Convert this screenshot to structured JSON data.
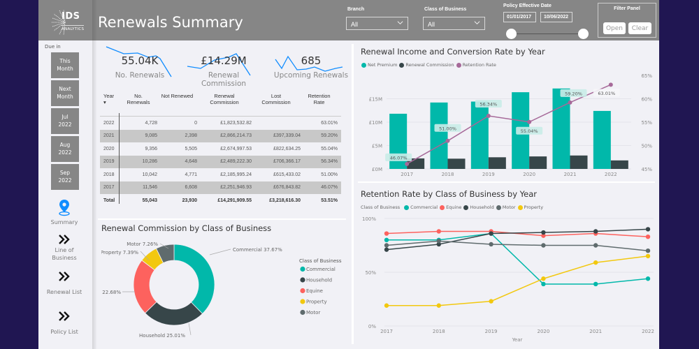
{
  "header": {
    "logo_text": "IDS",
    "logo_subtext": "ANALYTICS",
    "title": "Renewals Summary",
    "branch_label": "Branch",
    "branch_value": "All",
    "class_label": "Class of Business",
    "class_value": "All",
    "date_label": "Policy Effective Date",
    "date_start": "01/01/2017",
    "date_end": "10/06/2022",
    "filter_panel_title": "Filter Panel",
    "open_label": "Open",
    "clear_label": "Clear"
  },
  "sidebar": {
    "due_label": "Due in",
    "due_buttons": [
      {
        "line1": "This",
        "line2": "Month"
      },
      {
        "line1": "Next",
        "line2": "Month"
      },
      {
        "line1": "Jul",
        "line2": "2022"
      },
      {
        "line1": "Aug",
        "line2": "2022"
      },
      {
        "line1": "Sep",
        "line2": "2022"
      }
    ],
    "nav": [
      {
        "label": "Summary",
        "icon": "map-pin-icon",
        "active": true
      },
      {
        "label": "Line of Business",
        "icon": "double-chevron-right-icon"
      },
      {
        "label": "Renewal List",
        "icon": "double-chevron-right-icon"
      },
      {
        "label": "Policy List",
        "icon": "double-chevron-right-icon"
      }
    ],
    "nav_line_of": "Line of",
    "nav_business": "Business"
  },
  "kpis": [
    {
      "value": "55.04K",
      "label": "No. Renewals"
    },
    {
      "value": "£14.29M",
      "label": "Renewal Commission"
    },
    {
      "value": "685",
      "label": "Upcoming Renewals"
    }
  ],
  "table": {
    "headers": [
      {
        "l1": "Year",
        "l2": "▾"
      },
      {
        "l1": "No.",
        "l2": "Renewals"
      },
      {
        "l1": "Not Renewed",
        "l2": ""
      },
      {
        "l1": "Renewal",
        "l2": "Commission"
      },
      {
        "l1": "Lost",
        "l2": "Commission"
      },
      {
        "l1": "Retention",
        "l2": "Rate"
      }
    ],
    "rows": [
      [
        "2022",
        "4,728",
        "0",
        "£1,823,532.82",
        "",
        "63.01%"
      ],
      [
        "2021",
        "9,085",
        "2,398",
        "£2,866,214.73",
        "£397,339.04",
        "59.20%"
      ],
      [
        "2020",
        "9,356",
        "5,505",
        "£2,674,997.53",
        "£822,634.25",
        "55.04%"
      ],
      [
        "2019",
        "10,286",
        "4,648",
        "£2,489,222.30",
        "£706,366.17",
        "56.34%"
      ],
      [
        "2018",
        "10,042",
        "4,771",
        "£2,185,995.24",
        "£615,433.02",
        "51.00%"
      ],
      [
        "2017",
        "11,546",
        "6,608",
        "£2,251,946.93",
        "£676,843.82",
        "46.07%"
      ]
    ],
    "total": [
      "Total",
      "55,043",
      "23,930",
      "£14,291,909.55",
      "£3,218,616.30",
      "53.51%"
    ]
  },
  "chart_data": [
    {
      "type": "bar",
      "title": "Renewal Income and Conversion Rate by Year",
      "categories": [
        "2017",
        "2018",
        "2019",
        "2020",
        "2021",
        "2022"
      ],
      "series": [
        {
          "name": "Net Premium",
          "kind": "bar",
          "color": "#01b8aa",
          "values": [
            11.8,
            14.2,
            14.4,
            16.4,
            17.2,
            12.4
          ]
        },
        {
          "name": "Renewal Commission",
          "kind": "bar",
          "color": "#374649",
          "values": [
            2.25,
            2.19,
            2.49,
            2.67,
            2.87,
            1.82
          ]
        },
        {
          "name": "Retention Rate",
          "kind": "line",
          "axis": "right",
          "color": "#a66999",
          "values": [
            46.07,
            51.0,
            56.34,
            55.04,
            59.2,
            63.01
          ],
          "labels": [
            "46.07%",
            "51.00%",
            "56.34%",
            "55.04%",
            "59.20%",
            "63.01%"
          ]
        }
      ],
      "ylim": [
        0,
        20
      ],
      "yticks": [
        "£0M",
        "£5M",
        "£10M",
        "£15M"
      ],
      "ytick_values": [
        0,
        5,
        10,
        15
      ],
      "y2lim": [
        45,
        65
      ],
      "y2ticks": [
        "45%",
        "50%",
        "55%",
        "60%",
        "65%"
      ],
      "y2tick_values": [
        45,
        50,
        55,
        60,
        65
      ],
      "legend_position": "top-left",
      "grid": true
    },
    {
      "type": "line",
      "title": "Retention Rate by Class of Business by Year",
      "legend_title": "Class of Business",
      "x": [
        "2017",
        "2018",
        "2019",
        "2020",
        "2021",
        "2022"
      ],
      "xlabel": "Year",
      "series": [
        {
          "name": "Commercial",
          "color": "#01b8aa",
          "values": [
            80,
            80,
            86,
            39,
            39,
            44
          ]
        },
        {
          "name": "Equine",
          "color": "#fd625e",
          "values": [
            86,
            88,
            88,
            84,
            86,
            83
          ]
        },
        {
          "name": "Household",
          "color": "#374649",
          "values": [
            71,
            76,
            86,
            87,
            88,
            90
          ]
        },
        {
          "name": "Motor",
          "color": "#5f6b6d",
          "values": [
            75,
            79,
            76,
            75,
            75,
            70
          ]
        },
        {
          "name": "Property",
          "color": "#f2c80f",
          "values": [
            19,
            19,
            23,
            44,
            59,
            65
          ]
        }
      ],
      "ylim": [
        0,
        100
      ],
      "yticks": [
        "0%",
        "50%",
        "100%"
      ],
      "ytick_values": [
        0,
        50,
        100
      ],
      "legend_position": "top-left",
      "grid": true
    },
    {
      "type": "pie",
      "title": "Renewal Commission by Class of Business",
      "legend_title": "Class of Business",
      "slices": [
        {
          "name": "Commercial",
          "value": 37.67,
          "label": "Commercial 37.67%",
          "color": "#01b8aa"
        },
        {
          "name": "Household",
          "value": 25.01,
          "label": "Household 25.01%",
          "color": "#374649"
        },
        {
          "name": "Equine",
          "value": 22.68,
          "label": "Equine 22.68%",
          "color": "#fd625e"
        },
        {
          "name": "Property",
          "value": 7.39,
          "label": "Property 7.39%",
          "color": "#f2c80f"
        },
        {
          "name": "Motor",
          "value": 7.26,
          "label": "Motor 7.26%",
          "color": "#5f6b6d"
        }
      ],
      "legend_position": "right"
    }
  ]
}
